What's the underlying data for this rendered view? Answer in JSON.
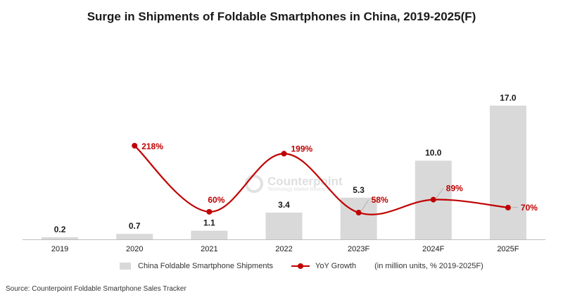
{
  "chart_data": {
    "type": "bar",
    "title": "Surge in Shipments of Foldable Smartphones in China, 2019-2025(F)",
    "categories": [
      "2019",
      "2020",
      "2021",
      "2022",
      "2023F",
      "2024F",
      "2025F"
    ],
    "series": [
      {
        "name": "China Foldable Smartphone Shipments",
        "type": "bar",
        "values": [
          0.2,
          0.7,
          1.1,
          3.4,
          5.3,
          10.0,
          17.0
        ],
        "labels": [
          "0.2",
          "0.7",
          "1.1",
          "3.4",
          "5.3",
          "10.0",
          "17.0"
        ]
      },
      {
        "name": "YoY Growth",
        "type": "line",
        "values": [
          null,
          218,
          60,
          199,
          58,
          89,
          70
        ],
        "labels": [
          "",
          "218%",
          "60%",
          "199%",
          "58%",
          "89%",
          "70%"
        ]
      }
    ],
    "legend_note": "(in million units, % 2019-2025F)",
    "legend_position": "bottom",
    "grid": false,
    "source": "Source: Counterpoint Foldable Smartphone Sales Tracker",
    "watermark": {
      "name": "Counterpoint",
      "tagline": "Technology Market Research"
    },
    "colors": {
      "bar": "#d9d9d9",
      "line": "#c00000",
      "text": "#1a1a1a",
      "axis": "#bfbfbf"
    }
  }
}
